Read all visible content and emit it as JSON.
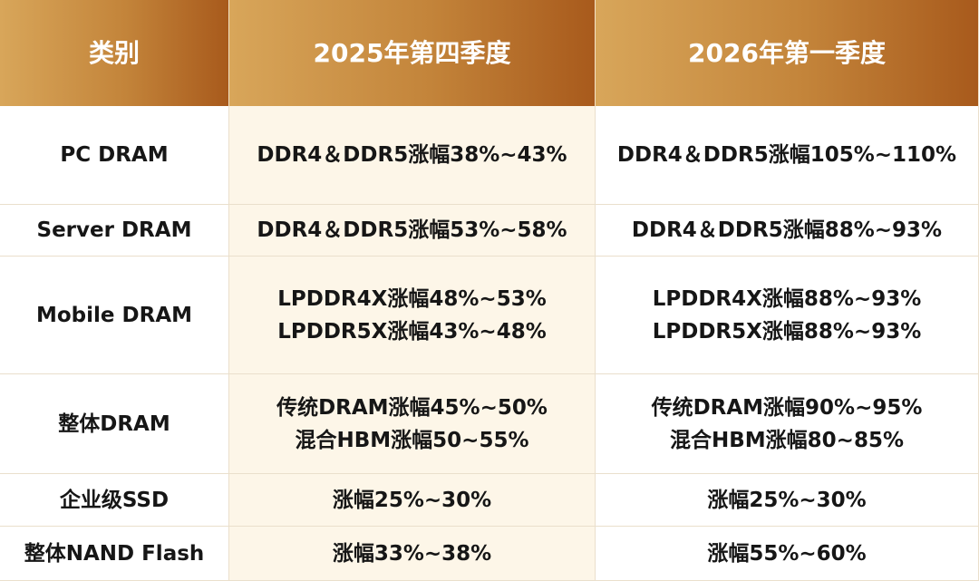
{
  "table": {
    "header": [
      "类别",
      "2025年第四季度",
      "2026年第一季度"
    ],
    "rows": [
      [
        [
          "PC DRAM"
        ],
        [
          "DDR4＆DDR5涨幅38%~43%"
        ],
        [
          "DDR4＆DDR5涨幅105%~110%"
        ]
      ],
      [
        [
          "Server DRAM"
        ],
        [
          "DDR4＆DDR5涨幅53%~58%"
        ],
        [
          "DDR4＆DDR5涨幅88%~93%"
        ]
      ],
      [
        [
          "Mobile DRAM"
        ],
        [
          "LPDDR4X涨幅48%~53%",
          "LPDDR5X涨幅43%~48%"
        ],
        [
          "LPDDR4X涨幅88%~93%",
          "LPDDR5X涨幅88%~93%"
        ]
      ],
      [
        [
          "整体DRAM"
        ],
        [
          "传统DRAM涨幅45%~50%",
          "混合HBM涨幅50~55%"
        ],
        [
          "传统DRAM涨幅90%~95%",
          "混合HBM涨幅80~85%"
        ]
      ],
      [
        [
          "企业级SSD"
        ],
        [
          "涨幅25%~30%"
        ],
        [
          "涨幅25%~30%"
        ]
      ],
      [
        [
          "整体NAND Flash"
        ],
        [
          "涨幅33%~38%"
        ],
        [
          "涨幅55%~60%"
        ]
      ]
    ]
  }
}
